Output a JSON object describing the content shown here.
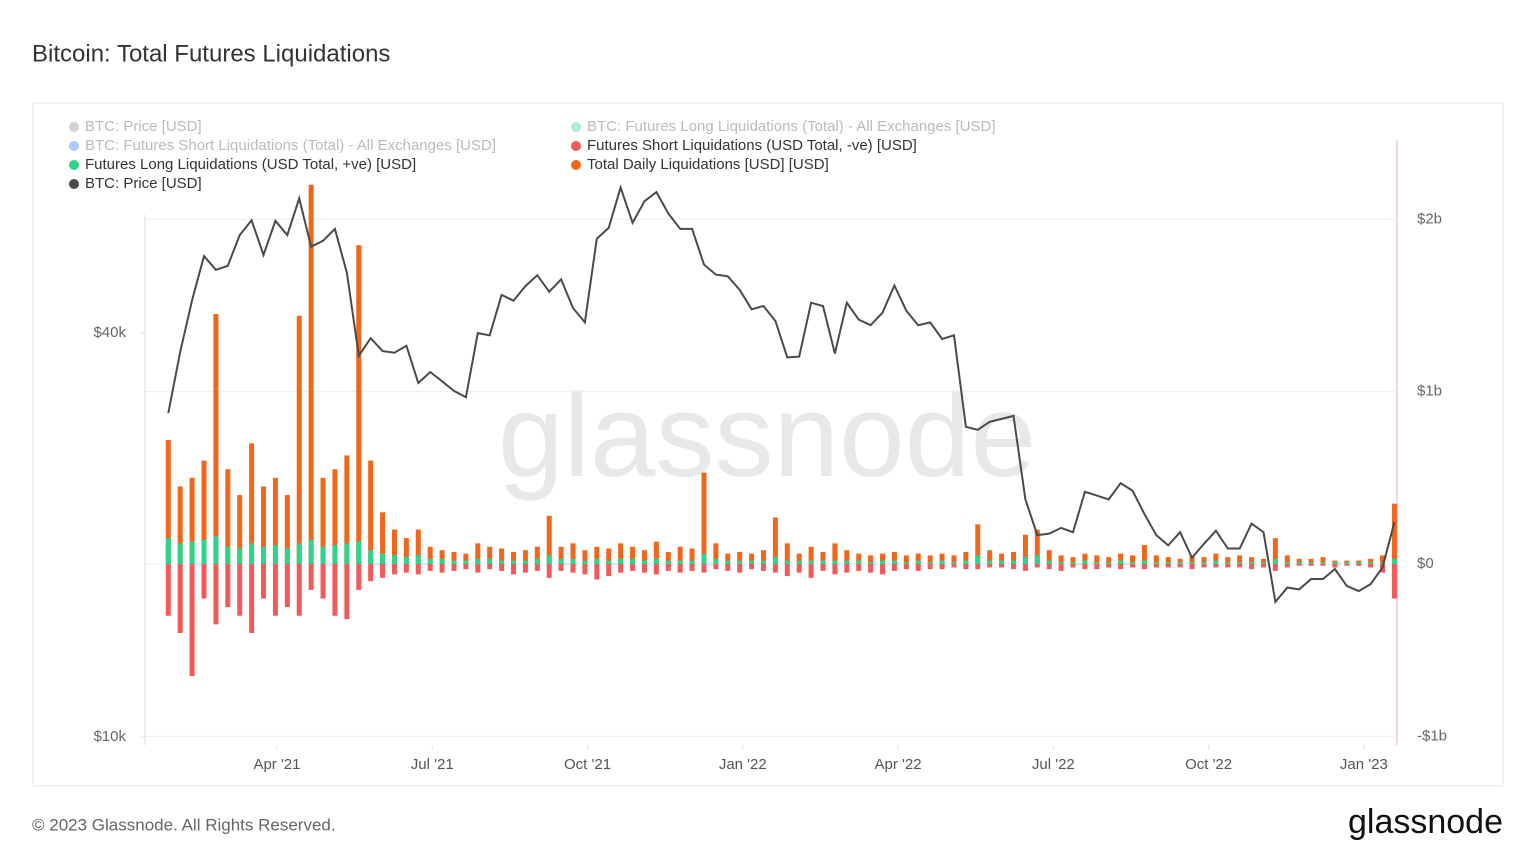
{
  "chart_data": {
    "type": "line",
    "title": "Bitcoin: Total Futures Liquidations",
    "watermark": "glassnode",
    "footer": "© 2023 Glassnode. All Rights Reserved.",
    "logo": "glassnode",
    "x": [
      0.9,
      1.13,
      1.36,
      1.59,
      1.82,
      2.05,
      2.28,
      2.51,
      2.74,
      2.97,
      3.2,
      3.43,
      3.66,
      3.89,
      4.12,
      4.35,
      4.58,
      4.81,
      5.04,
      5.27,
      5.5,
      5.73,
      5.96,
      6.19,
      6.42,
      6.65,
      6.88,
      7.11,
      7.34,
      7.57,
      7.8,
      8.03,
      8.26,
      8.49,
      8.72,
      8.95,
      9.18,
      9.41,
      9.64,
      9.87,
      10.1,
      10.33,
      10.56,
      10.79,
      11.02,
      11.25,
      11.48,
      11.71,
      11.94,
      12.17,
      12.4,
      12.63,
      12.86,
      13.09,
      13.32,
      13.55,
      13.78,
      14.01,
      14.24,
      14.47,
      14.7,
      14.93,
      15.16,
      15.39,
      15.62,
      15.85,
      16.08,
      16.31,
      16.54,
      16.77,
      17.0,
      17.23,
      17.46,
      17.69,
      17.92,
      18.15,
      18.38,
      18.61,
      18.84,
      19.07,
      19.3,
      19.53,
      19.76,
      19.99,
      20.22,
      20.45,
      20.68,
      20.91,
      21.14,
      21.37,
      21.6,
      21.83,
      22.06,
      22.29,
      22.52,
      22.75,
      22.98,
      23.21,
      23.44,
      23.67,
      23.9,
      24.13,
      24.36,
      24.59
    ],
    "xlim": [
      0.45,
      24.64
    ],
    "xticks": [
      {
        "value": 3,
        "label": "Apr '21"
      },
      {
        "value": 6,
        "label": "Jul '21"
      },
      {
        "value": 9,
        "label": "Oct '21"
      },
      {
        "value": 12,
        "label": "Jan '22"
      },
      {
        "value": 15,
        "label": "Apr '22"
      },
      {
        "value": 18,
        "label": "Jul '22"
      },
      {
        "value": 21,
        "label": "Oct '22"
      },
      {
        "value": 24,
        "label": "Jan '23"
      }
    ],
    "ylim": [
      9730,
      77600
    ],
    "log_scale": true,
    "yticks": [
      {
        "value": 10000,
        "label": "$10k"
      },
      {
        "value": 40000,
        "label": "$40k"
      }
    ],
    "y2lim": [
      -1050000000.0,
      2460000000.0
    ],
    "y2ticks": [
      {
        "value": -1000000000.0,
        "label": "-$1b"
      },
      {
        "value": 0,
        "label": "$0"
      },
      {
        "value": 1000000000.0,
        "label": "$1b"
      },
      {
        "value": 2000000000.0,
        "label": "$2b"
      }
    ],
    "grid": true,
    "series": [
      {
        "name": "BTC: Price [USD]",
        "color": "#8a9199",
        "visible": false
      },
      {
        "name": "BTC: Futures Long Liquidations (Total) - All Exchanges [USD]",
        "color": "#2ed48c",
        "visible": false
      },
      {
        "name": "BTC: Futures Short Liquidations (Total) - All Exchanges [USD]",
        "color": "#2979ff",
        "visible": false
      },
      {
        "name": "Futures Short Liquidations (USD Total, -ve) [USD]",
        "color": "#f25a5a",
        "visible": true,
        "axis": "y2",
        "values": [
          -300000000.0,
          -400000000.0,
          -650000000.0,
          -200000000.0,
          -350000000.0,
          -250000000.0,
          -300000000.0,
          -400000000.0,
          -200000000.0,
          -300000000.0,
          -250000000.0,
          -300000000.0,
          -150000000.0,
          -200000000.0,
          -300000000.0,
          -320000000.0,
          -150000000.0,
          -100000000.0,
          -80000000.0,
          -60000000.0,
          -50000000.0,
          -60000000.0,
          -40000000.0,
          -50000000.0,
          -40000000.0,
          -30000000.0,
          -50000000.0,
          -30000000.0,
          -40000000.0,
          -60000000.0,
          -50000000.0,
          -40000000.0,
          -80000000.0,
          -40000000.0,
          -50000000.0,
          -60000000.0,
          -90000000.0,
          -70000000.0,
          -50000000.0,
          -40000000.0,
          -50000000.0,
          -60000000.0,
          -40000000.0,
          -50000000.0,
          -40000000.0,
          -50000000.0,
          -30000000.0,
          -40000000.0,
          -50000000.0,
          -30000000.0,
          -40000000.0,
          -50000000.0,
          -70000000.0,
          -50000000.0,
          -80000000.0,
          -40000000.0,
          -60000000.0,
          -50000000.0,
          -40000000.0,
          -50000000.0,
          -60000000.0,
          -40000000.0,
          -30000000.0,
          -40000000.0,
          -30000000.0,
          -30000000.0,
          -20000000.0,
          -30000000.0,
          -30000000.0,
          -20000000.0,
          -20000000.0,
          -30000000.0,
          -40000000.0,
          -20000000.0,
          -30000000.0,
          -40000000.0,
          -20000000.0,
          -30000000.0,
          -30000000.0,
          -20000000.0,
          -30000000.0,
          -20000000.0,
          -30000000.0,
          -20000000.0,
          -20000000.0,
          -20000000.0,
          -30000000.0,
          -20000000.0,
          -20000000.0,
          -20000000.0,
          -20000000.0,
          -30000000.0,
          -20000000.0,
          -40000000.0,
          -20000000.0,
          -10000000.0,
          -10000000.0,
          -10000000.0,
          -20000000.0,
          -10000000.0,
          -10000000.0,
          -20000000.0,
          -50000000.0,
          -200000000.0
        ]
      },
      {
        "name": "Futures Long Liquidations (USD Total, +ve) [USD]",
        "color": "#2ed48c",
        "visible": true,
        "axis": "y2",
        "values": [
          150000000.0,
          120000000.0,
          130000000.0,
          140000000.0,
          160000000.0,
          100000000.0,
          90000000.0,
          120000000.0,
          100000000.0,
          110000000.0,
          90000000.0,
          120000000.0,
          140000000.0,
          100000000.0,
          110000000.0,
          120000000.0,
          130000000.0,
          80000000.0,
          60000000.0,
          50000000.0,
          40000000.0,
          50000000.0,
          30000000.0,
          30000000.0,
          20000000.0,
          20000000.0,
          30000000.0,
          30000000.0,
          20000000.0,
          20000000.0,
          20000000.0,
          30000000.0,
          50000000.0,
          30000000.0,
          30000000.0,
          20000000.0,
          30000000.0,
          20000000.0,
          30000000.0,
          30000000.0,
          20000000.0,
          30000000.0,
          20000000.0,
          20000000.0,
          20000000.0,
          60000000.0,
          30000000.0,
          20000000.0,
          20000000.0,
          20000000.0,
          20000000.0,
          40000000.0,
          20000000.0,
          20000000.0,
          20000000.0,
          20000000.0,
          20000000.0,
          20000000.0,
          20000000.0,
          10000000.0,
          20000000.0,
          20000000.0,
          10000000.0,
          20000000.0,
          10000000.0,
          20000000.0,
          10000000.0,
          20000000.0,
          50000000.0,
          20000000.0,
          20000000.0,
          20000000.0,
          40000000.0,
          50000000.0,
          20000000.0,
          10000000.0,
          10000000.0,
          20000000.0,
          10000000.0,
          10000000.0,
          20000000.0,
          10000000.0,
          20000000.0,
          10000000.0,
          10000000.0,
          10000000.0,
          10000000.0,
          10000000.0,
          20000000.0,
          10000000.0,
          10000000.0,
          10000000.0,
          10000000.0,
          30000000.0,
          10000000.0,
          10000000.0,
          10000000.0,
          10000000.0,
          10000000.0,
          10000000.0,
          10000000.0,
          10000000.0,
          10000000.0,
          30000000.0
        ]
      },
      {
        "name": "Total Daily Liquidations [USD] [USD]",
        "color": "#f0661a",
        "visible": true,
        "axis": "y2",
        "values": [
          720000000.0,
          450000000.0,
          500000000.0,
          600000000.0,
          1450000000.0,
          550000000.0,
          400000000.0,
          700000000.0,
          450000000.0,
          500000000.0,
          400000000.0,
          1440000000.0,
          2200000000.0,
          500000000.0,
          550000000.0,
          630000000.0,
          1850000000.0,
          600000000.0,
          300000000.0,
          200000000.0,
          150000000.0,
          200000000.0,
          100000000.0,
          80000000.0,
          70000000.0,
          60000000.0,
          120000000.0,
          100000000.0,
          90000000.0,
          70000000.0,
          80000000.0,
          100000000.0,
          280000000.0,
          100000000.0,
          120000000.0,
          80000000.0,
          100000000.0,
          90000000.0,
          120000000.0,
          100000000.0,
          80000000.0,
          130000000.0,
          70000000.0,
          100000000.0,
          90000000.0,
          530000000.0,
          120000000.0,
          60000000.0,
          70000000.0,
          60000000.0,
          80000000.0,
          270000000.0,
          120000000.0,
          60000000.0,
          100000000.0,
          70000000.0,
          120000000.0,
          80000000.0,
          60000000.0,
          50000000.0,
          60000000.0,
          70000000.0,
          50000000.0,
          60000000.0,
          50000000.0,
          60000000.0,
          50000000.0,
          70000000.0,
          230000000.0,
          80000000.0,
          60000000.0,
          70000000.0,
          170000000.0,
          200000000.0,
          80000000.0,
          50000000.0,
          40000000.0,
          60000000.0,
          50000000.0,
          40000000.0,
          60000000.0,
          50000000.0,
          110000000.0,
          50000000.0,
          40000000.0,
          30000000.0,
          50000000.0,
          40000000.0,
          60000000.0,
          40000000.0,
          50000000.0,
          40000000.0,
          30000000.0,
          150000000.0,
          50000000.0,
          30000000.0,
          30000000.0,
          40000000.0,
          20000000.0,
          20000000.0,
          20000000.0,
          30000000.0,
          50000000.0,
          350000000.0
        ]
      },
      {
        "name": "BTC: Price [USD]",
        "color": "#4a4a4a",
        "visible": true,
        "axis": "y",
        "values": [
          30400,
          37500,
          44800,
          52100,
          49700,
          50400,
          56000,
          58900,
          52300,
          58800,
          56000,
          63500,
          53800,
          54900,
          57200,
          49200,
          37000,
          39300,
          37600,
          37400,
          38300,
          33700,
          35000,
          33900,
          32800,
          32100,
          40000,
          39700,
          45600,
          44700,
          47000,
          48800,
          46100,
          48100,
          43600,
          41500,
          55300,
          57400,
          65900,
          58400,
          62900,
          64900,
          60300,
          57200,
          57200,
          50600,
          48900,
          48600,
          46400,
          43400,
          43900,
          41700,
          36800,
          36900,
          44400,
          43900,
          37300,
          44400,
          41900,
          41100,
          42900,
          47100,
          43200,
          41100,
          41500,
          39200,
          39700,
          29000,
          28700,
          29500,
          29800,
          30100,
          22600,
          20000,
          20100,
          20500,
          20200,
          23200,
          22900,
          22600,
          23900,
          23300,
          21500,
          20000,
          19300,
          20200,
          18500,
          19400,
          20300,
          19100,
          19100,
          20800,
          20200,
          15900,
          16700,
          16600,
          17200,
          17200,
          17800,
          16800,
          16500,
          16900,
          17900,
          20900
        ]
      }
    ]
  }
}
